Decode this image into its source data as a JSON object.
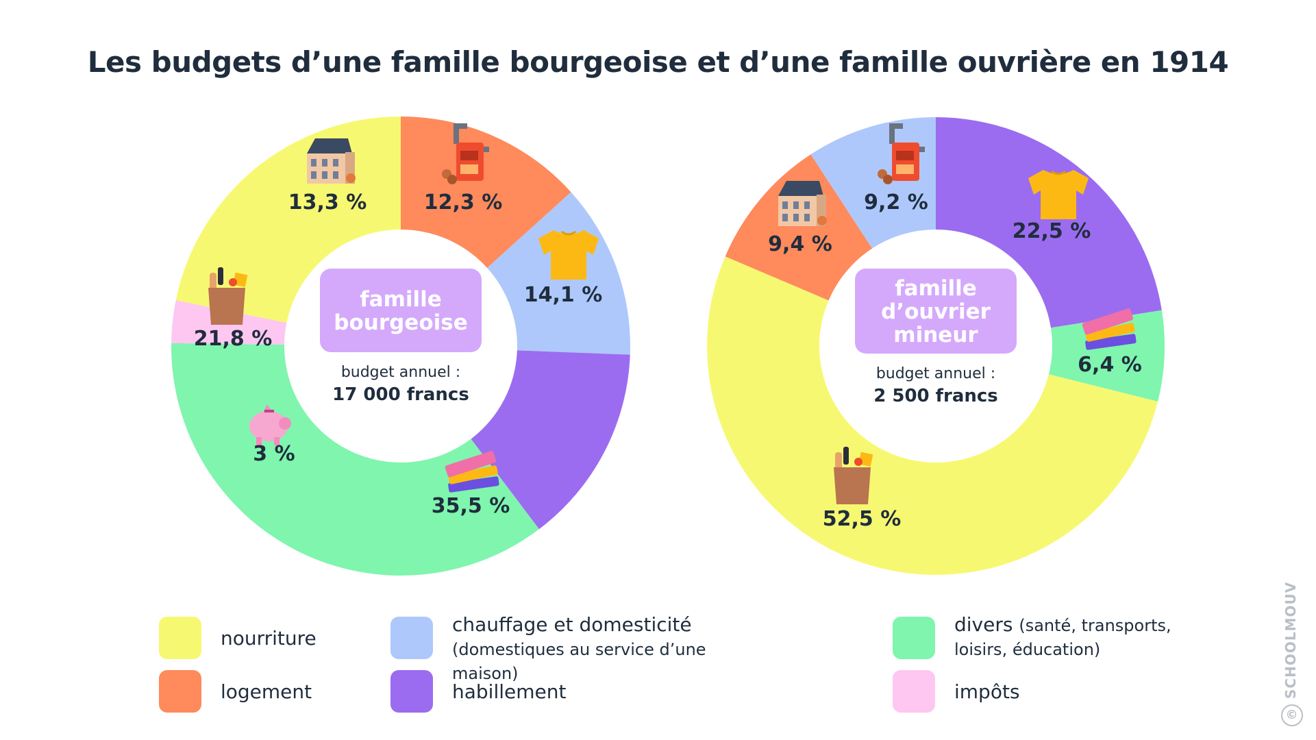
{
  "title": "Les budgets d’une famille bourgeoise et d’une famille ouvrière en 1914",
  "colors": {
    "nourriture": "#f7f871",
    "logement": "#ff8a5c",
    "chauffage": "#aec8fb",
    "habillement": "#9b6cf0",
    "divers": "#7ff5ae",
    "impots": "#fdc7f1",
    "center_label_bg": "#d4a9fb",
    "text": "#1f2d3d"
  },
  "legend": [
    {
      "key": "nourriture",
      "label": "nourriture",
      "note": ""
    },
    {
      "key": "logement",
      "label": "logement",
      "note": ""
    },
    {
      "key": "chauffage",
      "label": "chauffage et domesticité",
      "note": "(domestiques au service d’une maison)"
    },
    {
      "key": "habillement",
      "label": "habillement",
      "note": ""
    },
    {
      "key": "divers",
      "label": "divers",
      "note": "(santé, transports, loisirs, éducation)"
    },
    {
      "key": "impots",
      "label": "impôts",
      "note": ""
    }
  ],
  "chart_data": [
    {
      "type": "pie",
      "variant": "donut",
      "center_label": "famille bourgeoise",
      "center_sub": "budget annuel :",
      "center_value": "17 000 francs",
      "slices": [
        {
          "key": "logement",
          "label": "13,3 %",
          "value": 13.3,
          "icon": "house-icon"
        },
        {
          "key": "chauffage",
          "label": "12,3 %",
          "value": 12.3,
          "icon": "stove-icon"
        },
        {
          "key": "habillement",
          "label": "14,1 %",
          "value": 14.1,
          "icon": "tshirt-icon"
        },
        {
          "key": "divers",
          "label": "35,5 %",
          "value": 35.5,
          "icon": "books-icon"
        },
        {
          "key": "impots",
          "label": "3 %",
          "value": 3,
          "icon": "piggy-bank-icon"
        },
        {
          "key": "nourriture",
          "label": "21,8 %",
          "value": 21.8,
          "icon": "grocery-bag-icon"
        }
      ]
    },
    {
      "type": "pie",
      "variant": "donut",
      "center_label": "famille d’ouvrier mineur",
      "center_sub": "budget annuel :",
      "center_value": "2 500 francs",
      "slices": [
        {
          "key": "habillement",
          "label": "22,5 %",
          "value": 22.5,
          "icon": "tshirt-icon"
        },
        {
          "key": "divers",
          "label": "6,4 %",
          "value": 6.4,
          "icon": "books-icon"
        },
        {
          "key": "nourriture",
          "label": "52,5 %",
          "value": 52.5,
          "icon": "grocery-bag-icon"
        },
        {
          "key": "logement",
          "label": "9,4 %",
          "value": 9.4,
          "icon": "house-icon"
        },
        {
          "key": "chauffage",
          "label": "9,2 %",
          "value": 9.2,
          "icon": "stove-icon"
        }
      ]
    }
  ],
  "copyright": "SCHOOLMOUV",
  "copyright_symbol": "©"
}
